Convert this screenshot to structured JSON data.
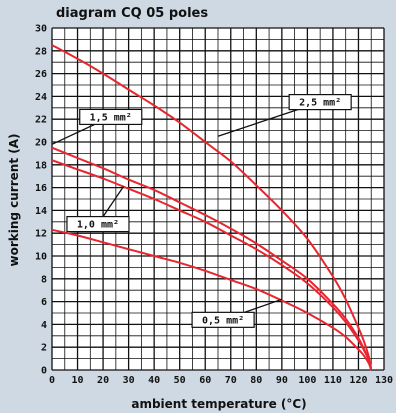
{
  "chart_data": {
    "type": "line",
    "title": "diagram CQ 05 poles",
    "xlabel": "ambient temperature (°C)",
    "ylabel": "working current (A)",
    "xlim": [
      0,
      130
    ],
    "ylim": [
      0,
      30
    ],
    "xticks": [
      "0",
      "10",
      "20",
      "30",
      "40",
      "50",
      "60",
      "70",
      "80",
      "90",
      "100",
      "110",
      "120",
      "130"
    ],
    "yticks": [
      "0",
      "2",
      "4",
      "6",
      "8",
      "10",
      "12",
      "14",
      "16",
      "18",
      "20",
      "22",
      "24",
      "26",
      "28",
      "30"
    ],
    "grid": {
      "major": true,
      "minor": true
    },
    "series": [
      {
        "name": "2,5 mm²",
        "x": [
          0,
          10,
          20,
          30,
          40,
          50,
          60,
          70,
          80,
          90,
          100,
          110,
          115,
          120,
          122,
          124,
          125
        ],
        "y": [
          28.5,
          27.3,
          26.0,
          24.6,
          23.2,
          21.7,
          20.0,
          18.3,
          16.2,
          14.0,
          11.5,
          8.2,
          6.2,
          3.7,
          2.6,
          1.2,
          0
        ]
      },
      {
        "name": "1,5 mm²",
        "x": [
          0,
          10,
          20,
          30,
          40,
          50,
          60,
          70,
          80,
          90,
          100,
          110,
          115,
          120,
          122,
          124,
          125
        ],
        "y": [
          19.5,
          18.6,
          17.7,
          16.7,
          15.8,
          14.7,
          13.6,
          12.4,
          11.1,
          9.6,
          8.0,
          5.8,
          4.5,
          2.8,
          1.9,
          0.9,
          0
        ]
      },
      {
        "name": "1,0 mm²",
        "x": [
          0,
          10,
          20,
          30,
          40,
          50,
          60,
          70,
          80,
          90,
          100,
          110,
          115,
          120,
          122,
          124,
          125
        ],
        "y": [
          18.4,
          17.6,
          16.8,
          15.9,
          15.0,
          14.0,
          13.0,
          11.8,
          10.6,
          9.2,
          7.6,
          5.5,
          4.2,
          2.6,
          1.8,
          0.9,
          0
        ]
      },
      {
        "name": "0,5 mm²",
        "x": [
          0,
          10,
          20,
          30,
          40,
          50,
          60,
          70,
          80,
          90,
          100,
          110,
          115,
          120,
          122,
          124,
          125
        ],
        "y": [
          12.3,
          11.8,
          11.2,
          10.6,
          10.0,
          9.4,
          8.7,
          7.9,
          7.1,
          6.1,
          5.0,
          3.7,
          2.9,
          1.8,
          1.3,
          0.6,
          0
        ]
      }
    ],
    "callouts": [
      {
        "text": "2,5 mm²",
        "series": 0,
        "anchor_x": 65,
        "anchor_y": 20.5,
        "label_x": 105,
        "label_y": 23.5
      },
      {
        "text": "1,5 mm²",
        "series": 1,
        "anchor_x": 0,
        "anchor_y": 19.8,
        "label_x": 23,
        "label_y": 22.2
      },
      {
        "text": "1,0 mm²",
        "series": 2,
        "anchor_x": 28,
        "anchor_y": 16.1,
        "label_x": 18,
        "label_y": 12.8
      },
      {
        "text": "0,5 mm²",
        "series": 3,
        "anchor_x": 90,
        "anchor_y": 6.2,
        "label_x": 67,
        "label_y": 4.4
      }
    ],
    "colors": {
      "background": "#ced9e4",
      "plot_background": "#ffffff",
      "grid": "#111111",
      "curve": "#e8262f",
      "callout_line": "#111111"
    }
  }
}
